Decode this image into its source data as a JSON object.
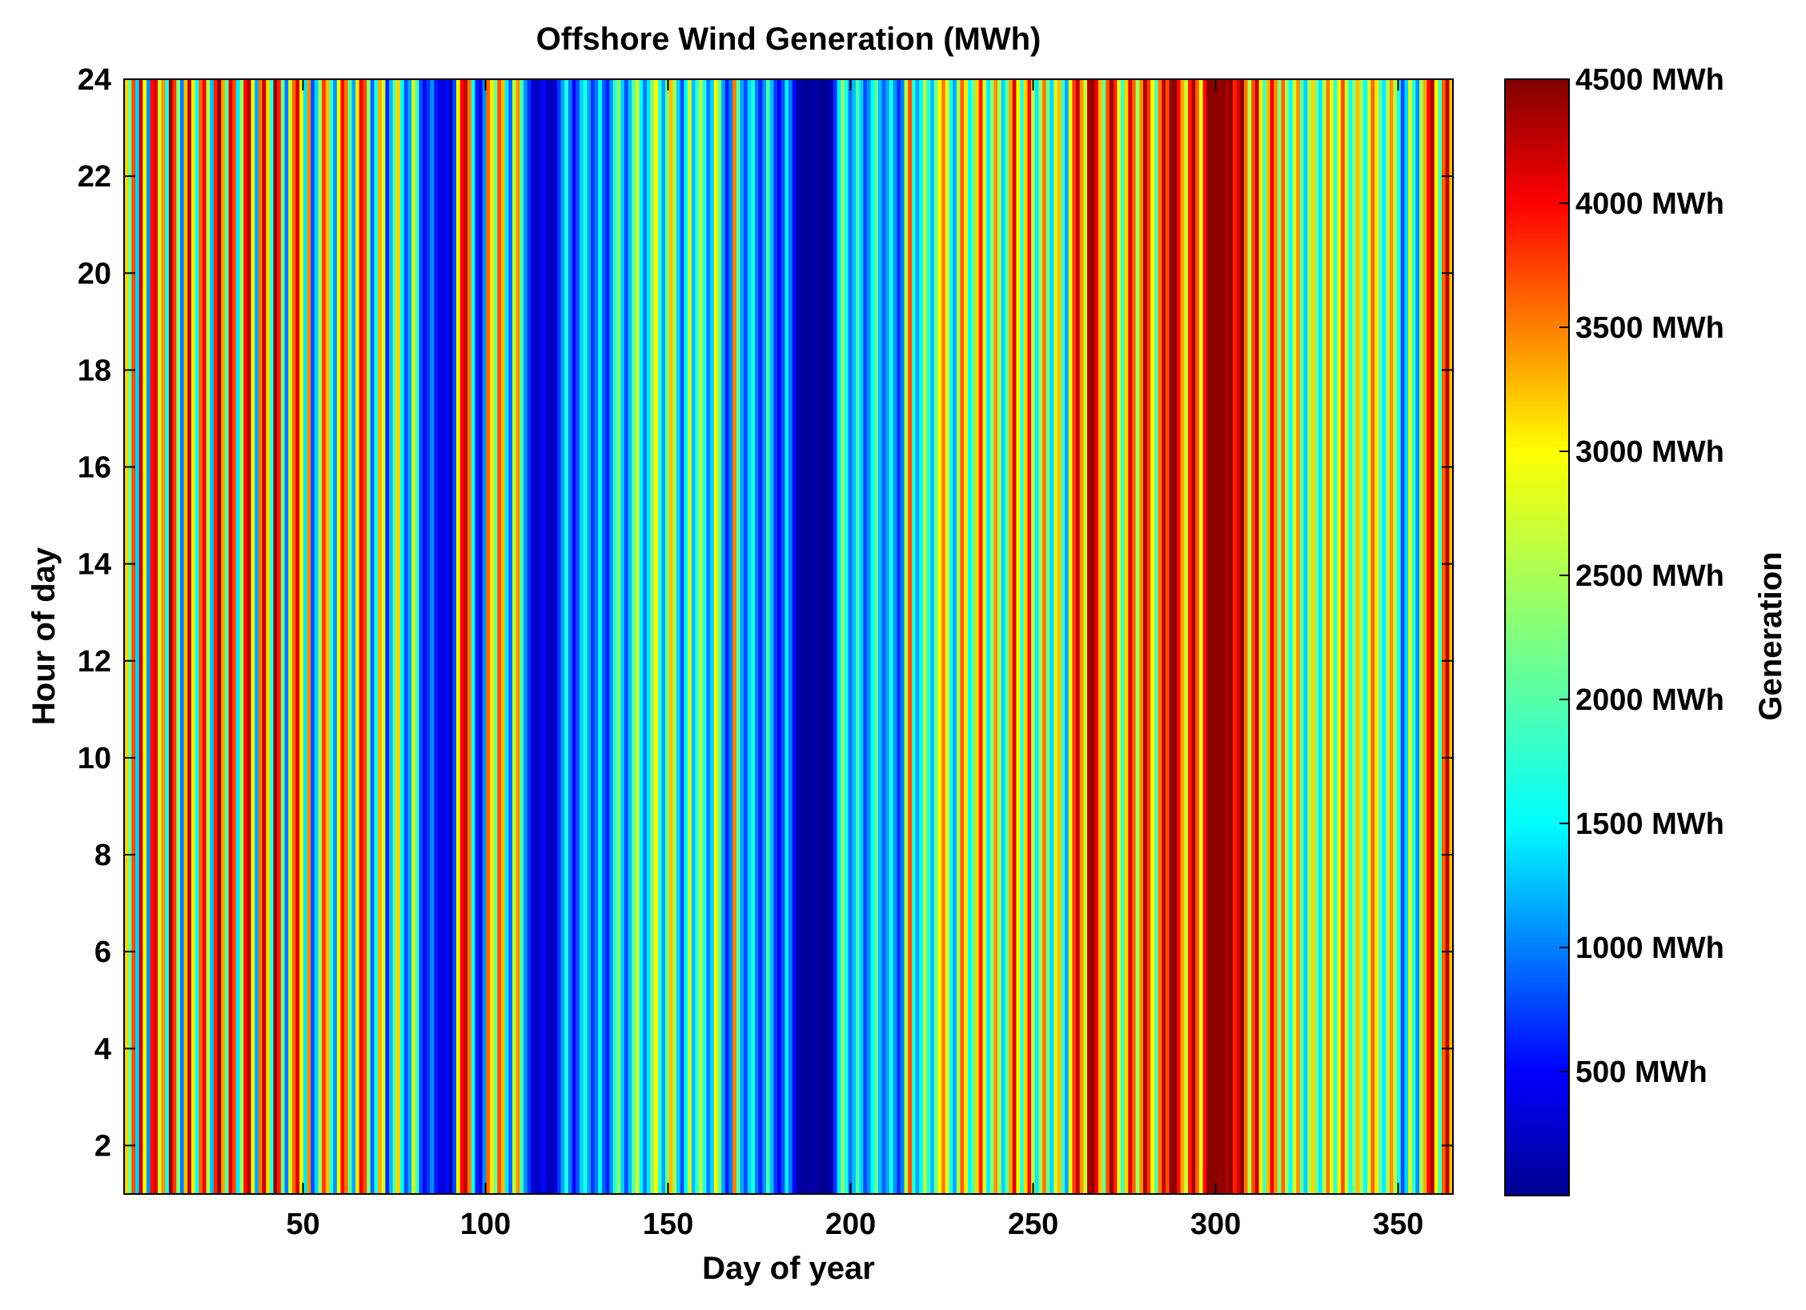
{
  "chart_data": {
    "type": "heatmap",
    "title": "Offshore Wind Generation (MWh)",
    "xlabel": "Day of year",
    "ylabel": "Hour of day",
    "xlim": [
      1,
      365
    ],
    "ylim": [
      1,
      24
    ],
    "x_ticks": [
      50,
      100,
      150,
      200,
      250,
      300,
      350
    ],
    "x_tick_labels": [
      "50",
      "100",
      "150",
      "200",
      "250",
      "300",
      "350"
    ],
    "y_ticks": [
      2,
      4,
      6,
      8,
      10,
      12,
      14,
      16,
      18,
      20,
      22,
      24
    ],
    "y_tick_labels": [
      "2",
      "4",
      "6",
      "8",
      "10",
      "12",
      "14",
      "16",
      "18",
      "20",
      "22",
      "24"
    ],
    "colorbar": {
      "label": "Generation",
      "range": [
        0,
        4500
      ],
      "colormap": "jet",
      "ticks": [
        500,
        1000,
        1500,
        2000,
        2500,
        3000,
        3500,
        4000,
        4500
      ],
      "tick_labels": [
        "500 MWh",
        "1000 MWh",
        "1500 MWh",
        "2000 MWh",
        "2500 MWh",
        "3000 MWh",
        "3500 MWh",
        "4000 MWh",
        "4500 MWh"
      ]
    },
    "daily_mean_values": [
      3000,
      2200,
      3600,
      1500,
      4200,
      2800,
      1200,
      3900,
      4100,
      2600,
      3300,
      1800,
      4400,
      3700,
      2300,
      1100,
      3100,
      4300,
      2900,
      1700,
      3500,
      4000,
      2500,
      1400,
      3800,
      4450,
      3200,
      2100,
      4100,
      3600,
      1600,
      2400,
      3900,
      4300,
      2700,
      1300,
      3400,
      4200,
      3000,
      1900,
      4400,
      3800,
      2200,
      1100,
      2600,
      3500,
      4100,
      2800,
      1600,
      3300,
      900,
      1500,
      2400,
      3700,
      3100,
      1900,
      1200,
      2700,
      3900,
      3400,
      2100,
      1300,
      2900,
      4000,
      3600,
      2300,
      1000,
      1800,
      3200,
      2600,
      700,
      1400,
      2200,
      3000,
      1700,
      900,
      1300,
      2600,
      2000,
      900,
      600,
      800,
      1200,
      700,
      500,
      400,
      600,
      300,
      900,
      2800,
      3900,
      4200,
      3400,
      1800,
      700,
      500,
      1200,
      3500,
      2900,
      2200,
      3600,
      3100,
      1600,
      1000,
      2500,
      3300,
      2000,
      1200,
      800,
      400,
      300,
      400,
      600,
      300,
      250,
      400,
      800,
      1300,
      1800,
      1100,
      600,
      900,
      1500,
      1800,
      1300,
      800,
      1100,
      1700,
      1000,
      700,
      1200,
      1900,
      2300,
      1500,
      900,
      1400,
      2100,
      2600,
      1700,
      1100,
      1600,
      2300,
      2800,
      1900,
      1300,
      2200,
      3100,
      2400,
      1500,
      900,
      1700,
      2600,
      1400,
      1900,
      2500,
      1800,
      1100,
      1500,
      2800,
      2200,
      1300,
      700,
      1100,
      3400,
      2100,
      1300,
      900,
      1500,
      1800,
      1100,
      700,
      1200,
      2000,
      1400,
      800,
      500,
      900,
      1600,
      1100,
      600,
      200,
      150,
      100,
      120,
      180,
      150,
      100,
      90,
      120,
      300,
      800,
      1600,
      2300,
      1800,
      1100,
      1400,
      2000,
      1500,
      900,
      1200,
      1700,
      2100,
      1400,
      1000,
      1300,
      1800,
      1200,
      800,
      1100,
      2500,
      3600,
      1900,
      1300,
      1700,
      2500,
      1900,
      1400,
      2200,
      2800,
      3400,
      2700,
      1800,
      1300,
      2400,
      3500,
      2900,
      1700,
      2200,
      3000,
      3800,
      2600,
      1600,
      2300,
      3300,
      2400,
      1500,
      2100,
      3200,
      4100,
      2800,
      1900,
      3000,
      3900,
      2500,
      1600,
      2400,
      3400,
      2200,
      1500,
      2600,
      3100,
      2000,
      1300,
      2700,
      3700,
      4200,
      3300,
      2600,
      4300,
      4450,
      4000,
      3100,
      2200,
      3600,
      4400,
      3800,
      2700,
      2000,
      3000,
      4100,
      3500,
      2400,
      3300,
      4300,
      3700,
      2800,
      2100,
      3400,
      4200,
      3600,
      4400,
      4450,
      3900,
      3200,
      2600,
      3800,
      4300,
      3500,
      2700,
      3900,
      4450,
      4450,
      4450,
      4400,
      4450,
      4300,
      4450,
      3800,
      4100,
      4450,
      3400,
      2500,
      3600,
      4200,
      2900,
      2000,
      3100,
      4000,
      3300,
      2300,
      3500,
      2400,
      1700,
      2600,
      3300,
      2100,
      1500,
      2400,
      3000,
      2200,
      1600,
      2500,
      3400,
      2700,
      1900,
      2800,
      3600,
      2600,
      1800,
      2300,
      3100,
      2400,
      1700,
      2600,
      3500,
      2900,
      2100,
      1600,
      2400,
      3300,
      2500,
      1800,
      900,
      1500,
      2600,
      1900,
      1200,
      2400,
      3200,
      3900,
      4300,
      2800,
      2000,
      3500,
      4200,
      3100
    ]
  }
}
